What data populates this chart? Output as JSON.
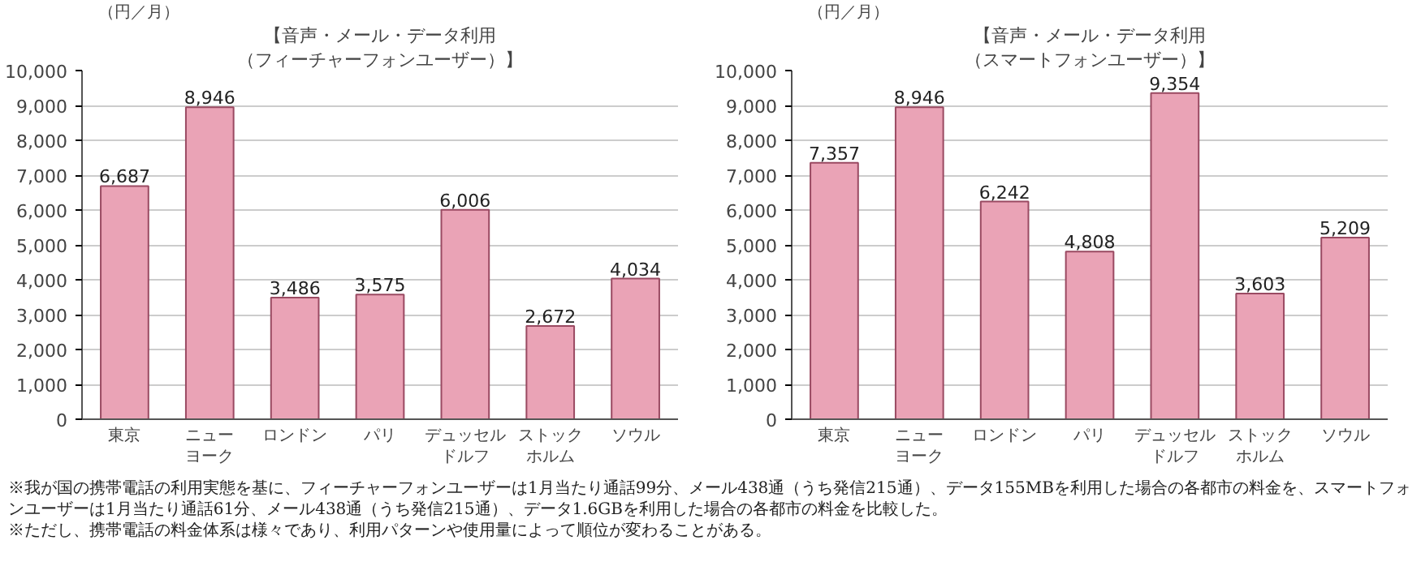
{
  "chart_data": [
    {
      "type": "bar",
      "title": "【音声・メール・データ利用",
      "subtitle": "（フィーチャーフォンユーザー）】",
      "ylabel": "（円／月）",
      "categories": [
        "東京",
        "ニューヨーク",
        "ロンドン",
        "パリ",
        "デュッセルドルフ",
        "ストックホルム",
        "ソウル"
      ],
      "values": [
        6687,
        8946,
        3486,
        3575,
        6006,
        2672,
        4034
      ],
      "value_labels": [
        "6,687",
        "8,946",
        "3,486",
        "3,575",
        "6,006",
        "2,672",
        "4,034"
      ],
      "color": "#eaa3b6",
      "ylim": [
        0,
        10000
      ],
      "yticks": [
        0,
        {
          "value": 1000,
          "label": "1,000"
        },
        {
          "value": 2000,
          "label": "2,000"
        },
        {
          "value": 3000,
          "label": "3,000"
        },
        {
          "value": 4000,
          "label": "4,000"
        },
        {
          "value": 5000,
          "label": "5,000"
        },
        {
          "value": 6000,
          "label": "6,000"
        },
        {
          "value": 7000,
          "label": "7,000"
        },
        {
          "value": 8000,
          "label": "8,000"
        },
        {
          "value": 9000,
          "label": "9,000"
        },
        {
          "value": 10000,
          "label": "10,000"
        }
      ],
      "grid": "y"
    },
    {
      "type": "bar",
      "title": "【音声・メール・データ利用",
      "subtitle": "（スマートフォンユーザー）】",
      "ylabel": "（円／月）",
      "categories": [
        "東京",
        "ニューヨーク",
        "ロンドン",
        "パリ",
        "デュッセルドルフ",
        "ストックホルム",
        "ソウル"
      ],
      "values": [
        7357,
        8946,
        6242,
        4808,
        9354,
        3603,
        5209
      ],
      "value_labels": [
        "7,357",
        "8,946",
        "6,242",
        "4,808",
        "9,354",
        "3,603",
        "5,209"
      ],
      "color": "#eaa3b6",
      "ylim": [
        0,
        10000
      ],
      "yticks": [
        0,
        {
          "value": 1000,
          "label": "1,000"
        },
        {
          "value": 2000,
          "label": "2,000"
        },
        {
          "value": 3000,
          "label": "3,000"
        },
        {
          "value": 4000,
          "label": "4,000"
        },
        {
          "value": 5000,
          "label": "5,000"
        },
        {
          "value": 6000,
          "label": "6,000"
        },
        {
          "value": 7000,
          "label": "7,000"
        },
        {
          "value": 8000,
          "label": "8,000"
        },
        {
          "value": 9000,
          "label": "9,000"
        },
        {
          "value": 10000,
          "label": "10,000"
        }
      ],
      "grid": "y",
      "annotations": [
        "※我が国の携帯電話の利用実態を基に、フィーチャーフォンユーザーは1月当たり通話99分、メール438通（うち発信215通）、データ155MBを利用した場合の各都市の料金を、スマートフォンユーザーは1月当たり通話61分、メール438通（うち発信215通）、データ1.6GBを利用した場合の各都市の料金を比較した。",
        "※ただし、携帯電話の料金体系は様々であり、利用パターンや使用量によって順位が変わることがある。"
      ]
    }
  ]
}
